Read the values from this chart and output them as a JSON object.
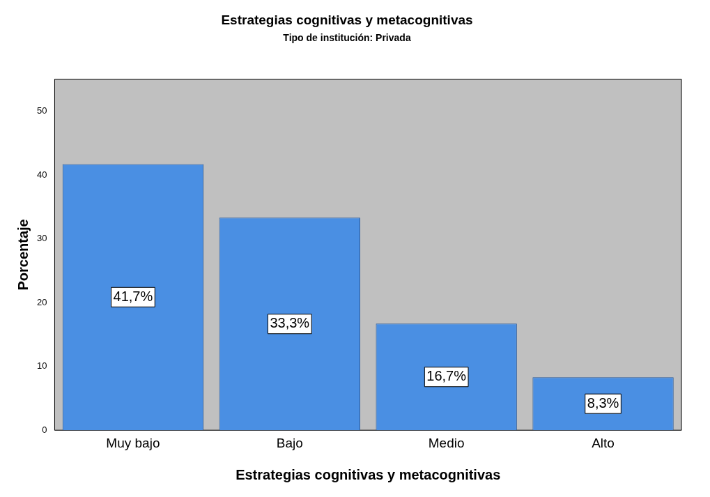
{
  "chart_data": {
    "type": "bar",
    "title": "Estrategias cognitivas y metacognitivas",
    "subtitle": "Tipo de institución: Privada",
    "xlabel": "Estrategias cognitivas y metacognitivas",
    "ylabel": "Porcentaje",
    "categories": [
      "Muy bajo",
      "Bajo",
      "Medio",
      "Alto"
    ],
    "values": [
      41.7,
      33.3,
      16.7,
      8.3
    ],
    "value_labels": [
      "41,7%",
      "33,3%",
      "16,7%",
      "8,3%"
    ],
    "color": "#4a8fe3",
    "ylim": [
      0,
      55
    ],
    "yticks": [
      0,
      10,
      20,
      30,
      40,
      50
    ],
    "grid": false,
    "legend": false
  }
}
